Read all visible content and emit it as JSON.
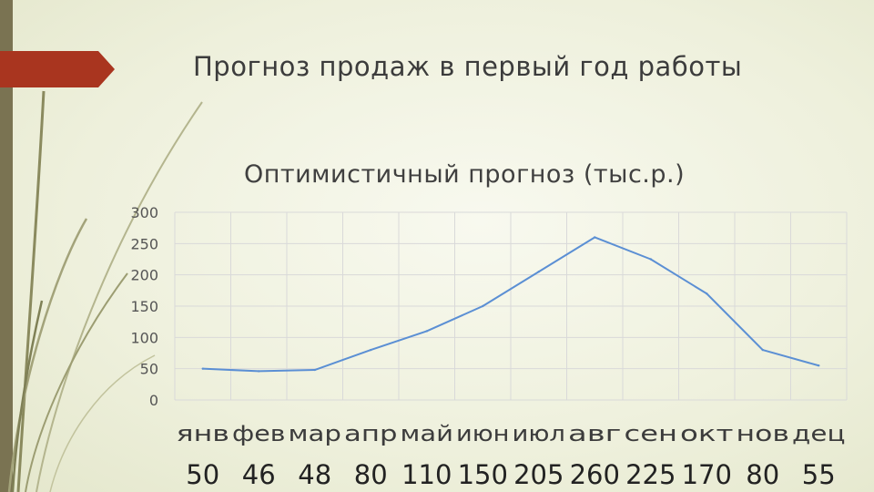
{
  "slide": {
    "title": "Прогноз продаж в первый год работы",
    "values_row": [
      "50",
      "46",
      "48",
      "80",
      "110",
      "150",
      "205",
      "260",
      "225",
      "170",
      "80",
      "55"
    ]
  },
  "colors": {
    "background": "#eef0dc",
    "accent_bar": "#7a7352",
    "accent_tab": "#a9351f",
    "line": "#5b8fd4",
    "grid": "#d9d9d9"
  },
  "chart_data": {
    "type": "line",
    "title": "Оптимистичный прогноз (тыс.р.)",
    "xlabel": "",
    "ylabel": "",
    "categories": [
      "янв",
      "фев",
      "мар",
      "апр",
      "май",
      "июн",
      "июл",
      "авг",
      "сен",
      "окт",
      "нов",
      "дец"
    ],
    "series": [
      {
        "values": [
          50,
          46,
          48,
          80,
          110,
          150,
          205,
          260,
          225,
          170,
          80,
          55
        ]
      }
    ],
    "yticks": [
      "0",
      "50",
      "100",
      "150",
      "200",
      "250",
      "300"
    ],
    "ylim": [
      0,
      300
    ],
    "grid": true,
    "legend": "none"
  }
}
